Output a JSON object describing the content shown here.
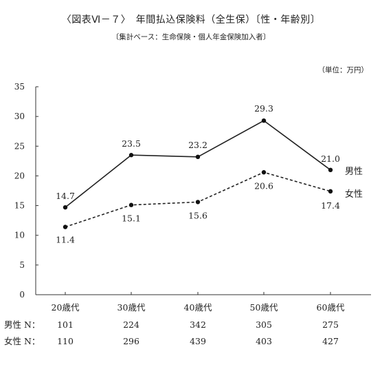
{
  "chart_data": {
    "type": "line",
    "title": "〈図表Ⅵ－７〉　年間払込保険料（全生保）〔性・年齢別〕",
    "subtitle": "〔集計ベース：生命保険・個人年金保険加入者〕",
    "unit": "（単位：万円）",
    "categories": [
      "20歳代",
      "30歳代",
      "40歳代",
      "50歳代",
      "60歳代"
    ],
    "ylim": [
      0,
      35
    ],
    "yticks": [
      0,
      5,
      10,
      15,
      20,
      25,
      30,
      35
    ],
    "grid": false,
    "series": [
      {
        "name": "男性",
        "values": [
          14.7,
          23.5,
          23.2,
          29.3,
          21.0
        ],
        "labels": [
          "14.7",
          "23.5",
          "23.2",
          "29.3",
          "21.0"
        ],
        "style": "solid"
      },
      {
        "name": "女性",
        "values": [
          11.4,
          15.1,
          15.6,
          20.6,
          17.4
        ],
        "labels": [
          "11.4",
          "15.1",
          "15.6",
          "20.6",
          "17.4"
        ],
        "style": "dashed"
      }
    ],
    "n_table": [
      {
        "label": "男性 N：",
        "values": [
          "101",
          "224",
          "342",
          "305",
          "275"
        ]
      },
      {
        "label": "女性 N：",
        "values": [
          "110",
          "296",
          "439",
          "403",
          "427"
        ]
      }
    ]
  }
}
